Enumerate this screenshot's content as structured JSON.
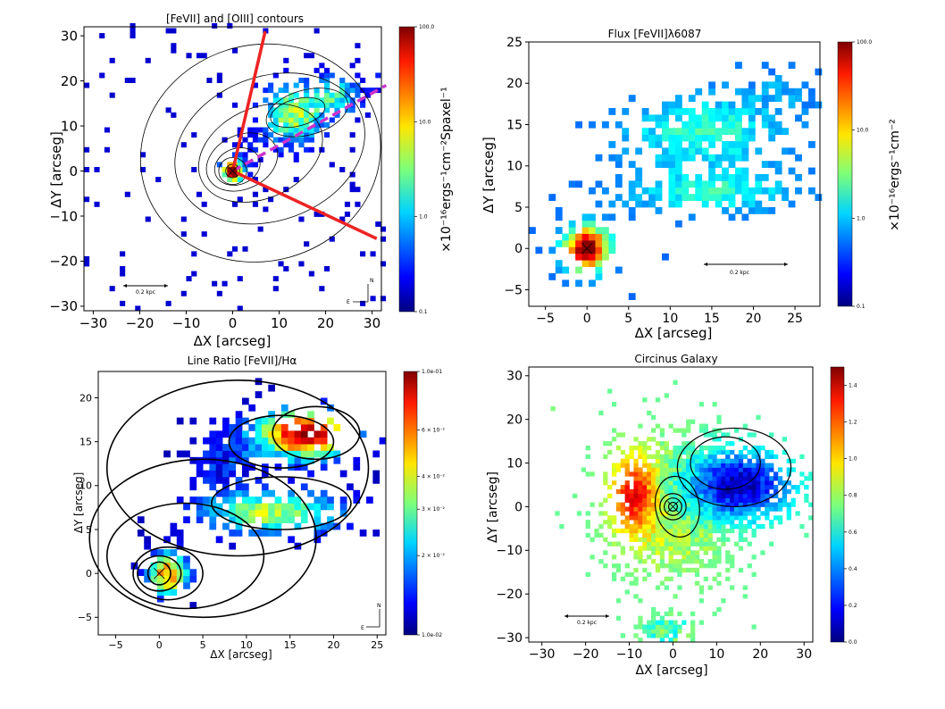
{
  "chart_data": [
    {
      "type": "heatmap",
      "title": "[FeVII] and [OIII] contours",
      "xlabel": "ΔX [arcseg]",
      "ylabel": "ΔY [arcseg]",
      "xlim": [
        -32,
        32
      ],
      "ylim": [
        -31,
        32
      ],
      "xticks": [
        -30,
        -20,
        -10,
        0,
        10,
        20,
        30
      ],
      "yticks": [
        -30,
        -20,
        -10,
        0,
        10,
        20,
        30
      ],
      "colorbar": {
        "label": "×10⁻¹⁶ergs⁻¹cm⁻²Spaxel⁻¹",
        "scale": "log",
        "min": 0.1,
        "max": 100.0,
        "ticks": [
          "100.0",
          "10.0",
          "1.0",
          "0.1"
        ]
      },
      "scalebar": "0.2 kpc",
      "compass": {
        "north": "N",
        "east": "E"
      },
      "cone_lines": [
        {
          "color": "#ee2222",
          "style": "solid",
          "from": [
            0,
            0
          ],
          "to": [
            7,
            31
          ]
        },
        {
          "color": "#ee2222",
          "style": "solid",
          "from": [
            0,
            0
          ],
          "to": [
            31,
            -15
          ]
        },
        {
          "color": "#cc33cc",
          "style": "dashed",
          "from": [
            0,
            0
          ],
          "to": [
            33,
            19
          ]
        }
      ],
      "nucleus": [
        0,
        0
      ]
    },
    {
      "type": "heatmap",
      "title": "Flux [FeVII]λ6087",
      "xlabel": "ΔX [arcseg]",
      "ylabel": "ΔY [arcseg]",
      "xlim": [
        -7,
        28
      ],
      "ylim": [
        -7,
        25
      ],
      "xticks": [
        -5,
        0,
        5,
        10,
        15,
        20,
        25
      ],
      "yticks": [
        -5,
        0,
        5,
        10,
        15,
        20,
        25
      ],
      "colorbar": {
        "label": "×10⁻¹⁶ergs⁻¹cm⁻²",
        "scale": "log",
        "min": 0.1,
        "max": 100.0,
        "ticks": [
          "100.0",
          "10.0",
          "1.0",
          "0.1"
        ]
      },
      "scalebar": "0.2 kpc",
      "nucleus": [
        0,
        0
      ]
    },
    {
      "type": "heatmap",
      "title": "Line Ratio [FeVII]/Hα",
      "xlabel": "ΔX [arcseg]",
      "ylabel": "ΔY [arcseg]",
      "xlim": [
        -7,
        26
      ],
      "ylim": [
        -7,
        23
      ],
      "xticks": [
        -5,
        0,
        5,
        10,
        15,
        20,
        25
      ],
      "yticks": [
        -5,
        0,
        5,
        10,
        15,
        20
      ],
      "colorbar": {
        "label": "",
        "scale": "log",
        "min": 0.01,
        "max": 0.1,
        "ticks": [
          "1.0e-01",
          "6 × 10⁻²",
          "4 × 10⁻²",
          "3 × 10⁻²",
          "2 × 10⁻²",
          "1.0e-02"
        ],
        "tick_values": [
          0.1,
          0.06,
          0.04,
          0.03,
          0.02,
          0.01
        ]
      },
      "compass": {
        "north": "N",
        "east": "E"
      },
      "nucleus": [
        0,
        0
      ]
    },
    {
      "type": "heatmap",
      "title": "Circinus Galaxy",
      "xlabel": "ΔX [arcseg]",
      "ylabel": "ΔY [arcseg]",
      "xlim": [
        -33,
        32
      ],
      "ylim": [
        -31,
        32
      ],
      "xticks": [
        -30,
        -20,
        -10,
        0,
        10,
        20,
        30
      ],
      "yticks": [
        -30,
        -20,
        -10,
        0,
        10,
        20,
        30
      ],
      "colorbar": {
        "label": "",
        "scale": "linear",
        "min": 0.0,
        "max": 1.5,
        "ticks": [
          "1.4",
          "1.2",
          "1.0",
          "0.8",
          "0.6",
          "0.4",
          "0.2",
          "0.0"
        ],
        "tick_values": [
          1.4,
          1.2,
          1.0,
          0.8,
          0.6,
          0.4,
          0.2,
          0.0
        ]
      },
      "scalebar": "0.2 kpc",
      "nucleus": [
        0,
        0
      ]
    }
  ]
}
